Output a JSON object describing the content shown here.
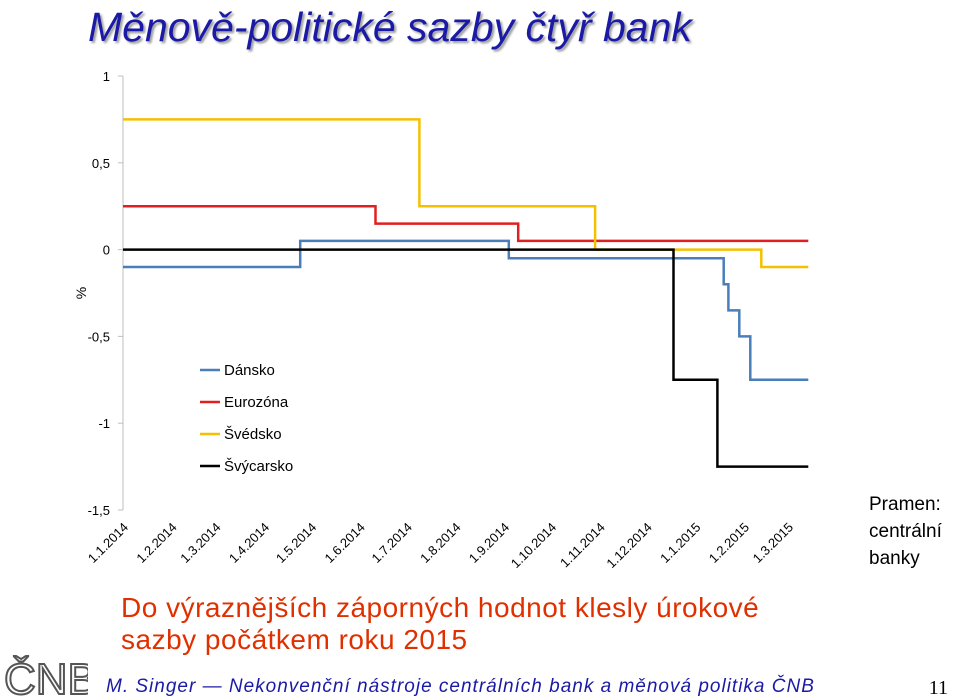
{
  "slide": {
    "title": "Měnově-politické sazby čtyř bank",
    "source_lines": [
      "Pramen:",
      "centrální",
      "banky"
    ],
    "note_lines": [
      "Do výraznějších záporných hodnot klesly úrokové",
      "sazby počátkem roku 2015"
    ],
    "footer": "M. Singer — Nekonvenční nástroje centrálních bank a měnová politika ČNB",
    "page_number": "11",
    "logo_text": "ČNB"
  },
  "chart_data": {
    "type": "line",
    "step": true,
    "title": "",
    "ylabel": "%",
    "xlabel": "",
    "ylim": [
      -1.5,
      1
    ],
    "yticks": [
      1,
      0.5,
      0,
      -0.5,
      -1,
      -1.5
    ],
    "ytick_labels": [
      "1",
      "0,5",
      "0",
      "-0,5",
      "-1",
      "-1,5"
    ],
    "xlim": [
      "2014-01-01",
      "2015-03-31"
    ],
    "xticks": [
      "2014-01-01",
      "2014-02-01",
      "2014-03-01",
      "2014-04-01",
      "2014-05-01",
      "2014-06-01",
      "2014-07-01",
      "2014-08-01",
      "2014-09-01",
      "2014-10-01",
      "2014-11-01",
      "2014-12-01",
      "2015-01-01",
      "2015-02-01",
      "2015-03-01"
    ],
    "xtick_labels": [
      "1.1.2014",
      "1.2.2014",
      "1.3.2014",
      "1.4.2014",
      "1.5.2014",
      "1.6.2014",
      "1.7.2014",
      "1.8.2014",
      "1.9.2014",
      "1.10.2014",
      "1.11.2014",
      "1.12.2014",
      "1.1.2015",
      "1.2.2015",
      "1.3.2015"
    ],
    "grid": false,
    "legend_position": "bottom-left",
    "series": [
      {
        "name": "Dánsko",
        "color": "#4a7ebb",
        "points": [
          [
            "2014-01-01",
            -0.1
          ],
          [
            "2014-04-24",
            -0.1
          ],
          [
            "2014-04-24",
            0.05
          ],
          [
            "2014-09-04",
            0.05
          ],
          [
            "2014-09-04",
            -0.05
          ],
          [
            "2015-01-19",
            -0.05
          ],
          [
            "2015-01-19",
            -0.2
          ],
          [
            "2015-01-22",
            -0.2
          ],
          [
            "2015-01-22",
            -0.35
          ],
          [
            "2015-01-29",
            -0.35
          ],
          [
            "2015-01-29",
            -0.5
          ],
          [
            "2015-02-05",
            -0.5
          ],
          [
            "2015-02-05",
            -0.75
          ],
          [
            "2015-03-14",
            -0.75
          ]
        ]
      },
      {
        "name": "Eurozóna",
        "color": "#e02020",
        "points": [
          [
            "2014-01-01",
            0.25
          ],
          [
            "2014-06-11",
            0.25
          ],
          [
            "2014-06-11",
            0.15
          ],
          [
            "2014-09-10",
            0.15
          ],
          [
            "2014-09-10",
            0.05
          ],
          [
            "2015-03-14",
            0.05
          ]
        ]
      },
      {
        "name": "Švédsko",
        "color": "#f5c000",
        "points": [
          [
            "2014-01-01",
            0.75
          ],
          [
            "2014-07-09",
            0.75
          ],
          [
            "2014-07-09",
            0.25
          ],
          [
            "2014-10-29",
            0.25
          ],
          [
            "2014-10-29",
            0.0
          ],
          [
            "2015-02-12",
            0.0
          ],
          [
            "2015-02-12",
            -0.1
          ],
          [
            "2015-03-14",
            -0.1
          ]
        ]
      },
      {
        "name": "Švýcarsko",
        "color": "#000000",
        "points": [
          [
            "2014-01-01",
            0.0
          ],
          [
            "2014-12-18",
            0.0
          ],
          [
            "2014-12-18",
            -0.75
          ],
          [
            "2015-01-15",
            -0.75
          ],
          [
            "2015-01-15",
            -1.25
          ],
          [
            "2015-03-14",
            -1.25
          ]
        ]
      }
    ]
  }
}
